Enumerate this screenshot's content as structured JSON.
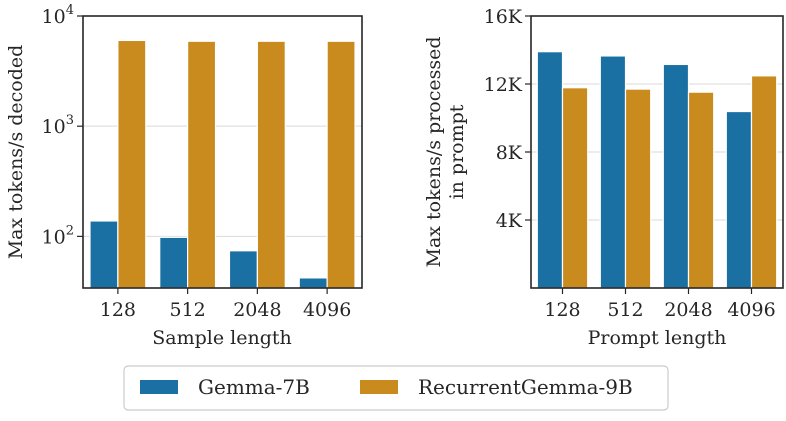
{
  "chart_data": [
    {
      "type": "bar",
      "title": "",
      "xlabel": "Sample length",
      "ylabel": "Max tokens/s decoded",
      "yscale": "log",
      "ylim": [
        34,
        10000
      ],
      "categories": [
        "128",
        "512",
        "2048",
        "4096"
      ],
      "yticks": [
        {
          "value": 100,
          "base": "10",
          "exp": "2"
        },
        {
          "value": 1000,
          "base": "10",
          "exp": "3"
        },
        {
          "value": 10000,
          "base": "10",
          "exp": "4"
        }
      ],
      "series": [
        {
          "name": "Gemma-7B",
          "values": [
            138,
            98,
            74,
            42
          ]
        },
        {
          "name": "RecurrentGemma-9B",
          "values": [
            6000,
            5900,
            5900,
            5900
          ]
        }
      ],
      "grid": true
    },
    {
      "type": "bar",
      "title": "",
      "xlabel": "Prompt length",
      "ylabel": [
        "Max tokens/s processed",
        "in prompt"
      ],
      "yscale": "linear",
      "ylim": [
        0,
        16000
      ],
      "categories": [
        "128",
        "512",
        "2048",
        "4096"
      ],
      "yticks": [
        {
          "value": 4000,
          "label": "4K"
        },
        {
          "value": 8000,
          "label": "8K"
        },
        {
          "value": 12000,
          "label": "12K"
        },
        {
          "value": 16000,
          "label": "16K"
        }
      ],
      "series": [
        {
          "name": "Gemma-7B",
          "values": [
            13900,
            13650,
            13150,
            10380
          ]
        },
        {
          "name": "RecurrentGemma-9B",
          "values": [
            11780,
            11700,
            11520,
            12480
          ]
        }
      ],
      "grid": true
    }
  ],
  "legend": {
    "placement": "bottom-center",
    "items": [
      {
        "label": "Gemma-7B",
        "color": "#1a6fa3"
      },
      {
        "label": "RecurrentGemma-9B",
        "color": "#c98a1e"
      }
    ]
  }
}
